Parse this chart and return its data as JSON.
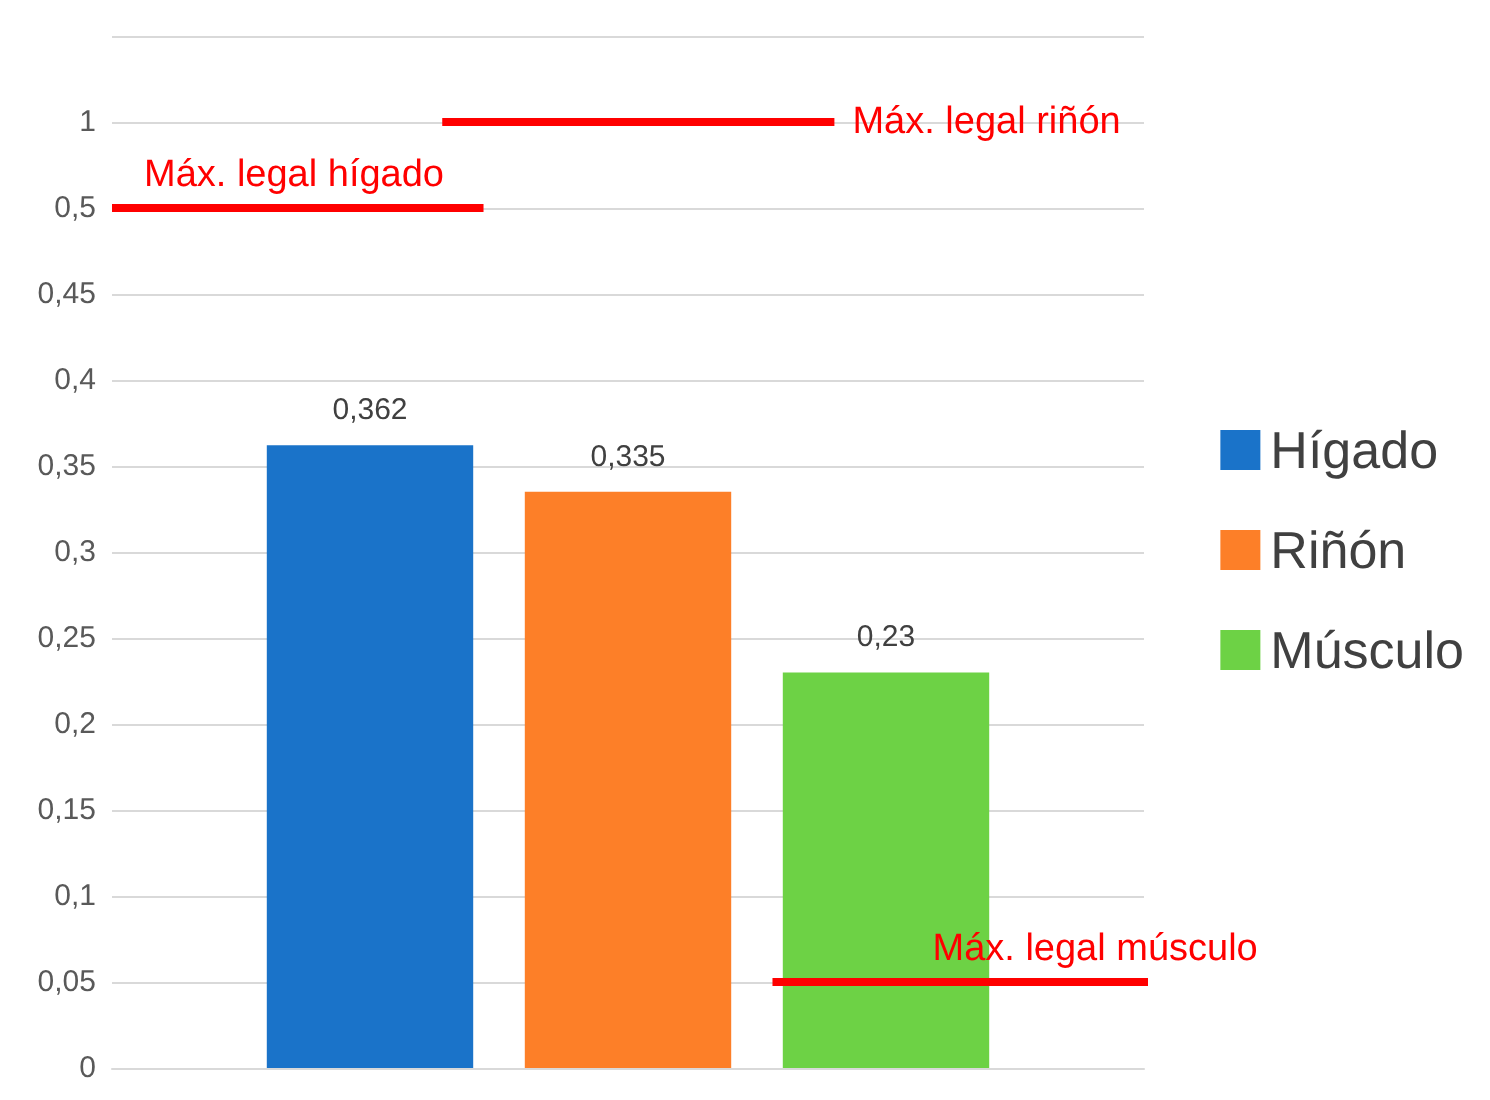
{
  "chart_data": {
    "type": "bar",
    "categories": [
      null
    ],
    "series": [
      {
        "name": "Hígado",
        "color": "#1a73c9",
        "values": [
          0.362
        ]
      },
      {
        "name": "Riñón",
        "color": "#fd7f28",
        "values": [
          0.335
        ]
      },
      {
        "name": "Músculo",
        "color": "#6dd245",
        "values": [
          0.23
        ]
      }
    ],
    "ylim": [
      0,
      0.6
    ],
    "yticks": [
      {
        "value": 0,
        "label": "0"
      },
      {
        "value": 0.05,
        "label": "0,05"
      },
      {
        "value": 0.1,
        "label": "0,1"
      },
      {
        "value": 0.15,
        "label": "0,15"
      },
      {
        "value": 0.2,
        "label": "0,2"
      },
      {
        "value": 0.25,
        "label": "0,25"
      },
      {
        "value": 0.3,
        "label": "0,3"
      },
      {
        "value": 0.35,
        "label": "0,35"
      },
      {
        "value": 0.4,
        "label": "0,4"
      },
      {
        "value": 0.45,
        "label": "0,45"
      },
      {
        "value": 0.5,
        "label": "0,5"
      },
      {
        "value": 0.55,
        "label": "1"
      },
      {
        "value": 0.6,
        "label": null
      }
    ],
    "ref_lines": [
      {
        "axis": "y",
        "value": 0.5,
        "label": "Máx. legal hígado",
        "color": "#ff0000"
      },
      {
        "axis": "y",
        "value": 0.55,
        "label": "Máx. legal riñón",
        "color": "#ff0000"
      },
      {
        "axis": "y",
        "value": 0.05,
        "label": "Máx. legal músculo",
        "color": "#ff0000"
      }
    ],
    "value_labels": [
      "0,362",
      "0,335",
      "0,23"
    ],
    "grid": "y",
    "legend": "right"
  }
}
